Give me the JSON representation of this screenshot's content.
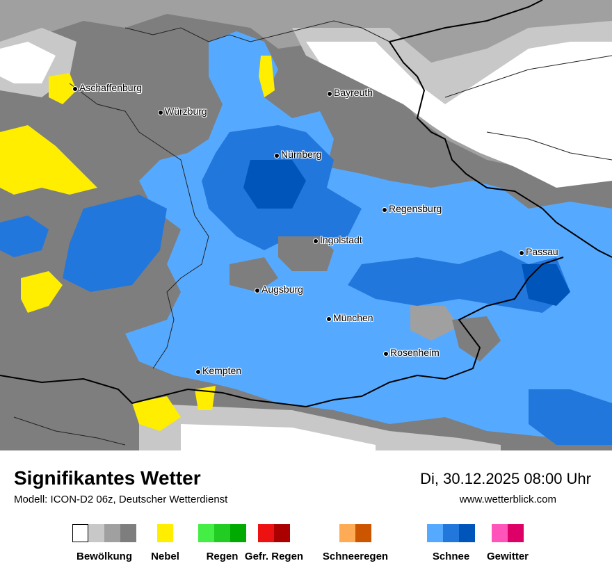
{
  "map": {
    "cities": [
      {
        "name": "Aschaffenburg"
      },
      {
        "name": "Würzburg"
      },
      {
        "name": "Bayreuth"
      },
      {
        "name": "Nürnberg"
      },
      {
        "name": "Regensburg"
      },
      {
        "name": "Ingolstadt"
      },
      {
        "name": "Passau"
      },
      {
        "name": "Augsburg"
      },
      {
        "name": "München"
      },
      {
        "name": "Rosenheim"
      },
      {
        "name": "Kempten"
      }
    ]
  },
  "footer": {
    "title": "Signifikantes Wetter",
    "subtitle": "Modell: ICON-D2 06z, Deutscher Wetterdienst",
    "datetime": "Di, 30.12.2025 08:00 Uhr",
    "website": "www.wetterblick.com"
  },
  "legend": [
    {
      "label": "Bewölkung",
      "colors": [
        "#ffffff",
        "#c8c8c8",
        "#a0a0a0",
        "#7e7e7e"
      ]
    },
    {
      "label": "Nebel",
      "colors": [
        "#ffee00"
      ]
    },
    {
      "label": "Regen",
      "colors": [
        "#44ee44",
        "#22cc22",
        "#00aa00"
      ]
    },
    {
      "label": "Gefr. Regen",
      "colors": [
        "#ee1111",
        "#aa0000"
      ]
    },
    {
      "label": "Schneeregen",
      "colors": [
        "#ffaa55",
        "#cc5500"
      ]
    },
    {
      "label": "Schnee",
      "colors": [
        "#55aaff",
        "#2277dd",
        "#0055bb"
      ]
    },
    {
      "label": "Gewitter",
      "colors": [
        "#ff55bb",
        "#dd0066"
      ]
    }
  ]
}
